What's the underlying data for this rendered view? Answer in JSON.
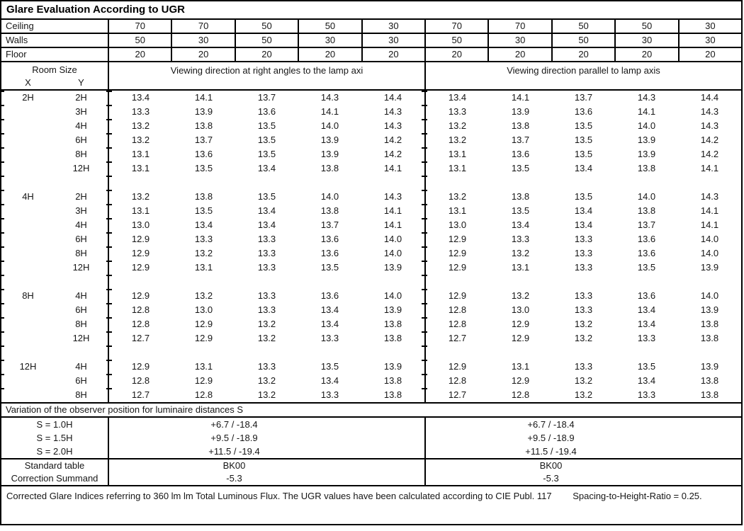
{
  "title": "Glare Evaluation According to UGR",
  "surface_rows": [
    {
      "label": "Ceiling",
      "values": [
        "70",
        "70",
        "50",
        "50",
        "30",
        "70",
        "70",
        "50",
        "50",
        "30"
      ]
    },
    {
      "label": "Walls",
      "values": [
        "50",
        "30",
        "50",
        "30",
        "30",
        "50",
        "30",
        "50",
        "30",
        "30"
      ]
    },
    {
      "label": "Floor",
      "values": [
        "20",
        "20",
        "20",
        "20",
        "20",
        "20",
        "20",
        "20",
        "20",
        "20"
      ]
    }
  ],
  "header": {
    "room_size": "Room Size",
    "x": "X",
    "y": "Y",
    "left_group": "Viewing direction at right angles to the lamp axi",
    "right_group": "Viewing direction parallel to lamp axis"
  },
  "ugr_rows": [
    {
      "x": "2H",
      "y": "2H",
      "v": [
        "13.4",
        "14.1",
        "13.7",
        "14.3",
        "14.4",
        "13.4",
        "14.1",
        "13.7",
        "14.3",
        "14.4"
      ]
    },
    {
      "x": "",
      "y": "3H",
      "v": [
        "13.3",
        "13.9",
        "13.6",
        "14.1",
        "14.3",
        "13.3",
        "13.9",
        "13.6",
        "14.1",
        "14.3"
      ]
    },
    {
      "x": "",
      "y": "4H",
      "v": [
        "13.2",
        "13.8",
        "13.5",
        "14.0",
        "14.3",
        "13.2",
        "13.8",
        "13.5",
        "14.0",
        "14.3"
      ]
    },
    {
      "x": "",
      "y": "6H",
      "v": [
        "13.2",
        "13.7",
        "13.5",
        "13.9",
        "14.2",
        "13.2",
        "13.7",
        "13.5",
        "13.9",
        "14.2"
      ]
    },
    {
      "x": "",
      "y": "8H",
      "v": [
        "13.1",
        "13.6",
        "13.5",
        "13.9",
        "14.2",
        "13.1",
        "13.6",
        "13.5",
        "13.9",
        "14.2"
      ]
    },
    {
      "x": "",
      "y": "12H",
      "v": [
        "13.1",
        "13.5",
        "13.4",
        "13.8",
        "14.1",
        "13.1",
        "13.5",
        "13.4",
        "13.8",
        "14.1"
      ]
    },
    {
      "blank": true
    },
    {
      "x": "4H",
      "y": "2H",
      "v": [
        "13.2",
        "13.8",
        "13.5",
        "14.0",
        "14.3",
        "13.2",
        "13.8",
        "13.5",
        "14.0",
        "14.3"
      ]
    },
    {
      "x": "",
      "y": "3H",
      "v": [
        "13.1",
        "13.5",
        "13.4",
        "13.8",
        "14.1",
        "13.1",
        "13.5",
        "13.4",
        "13.8",
        "14.1"
      ]
    },
    {
      "x": "",
      "y": "4H",
      "v": [
        "13.0",
        "13.4",
        "13.4",
        "13.7",
        "14.1",
        "13.0",
        "13.4",
        "13.4",
        "13.7",
        "14.1"
      ]
    },
    {
      "x": "",
      "y": "6H",
      "v": [
        "12.9",
        "13.3",
        "13.3",
        "13.6",
        "14.0",
        "12.9",
        "13.3",
        "13.3",
        "13.6",
        "14.0"
      ]
    },
    {
      "x": "",
      "y": "8H",
      "v": [
        "12.9",
        "13.2",
        "13.3",
        "13.6",
        "14.0",
        "12.9",
        "13.2",
        "13.3",
        "13.6",
        "14.0"
      ]
    },
    {
      "x": "",
      "y": "12H",
      "v": [
        "12.9",
        "13.1",
        "13.3",
        "13.5",
        "13.9",
        "12.9",
        "13.1",
        "13.3",
        "13.5",
        "13.9"
      ]
    },
    {
      "blank": true
    },
    {
      "x": "8H",
      "y": "4H",
      "v": [
        "12.9",
        "13.2",
        "13.3",
        "13.6",
        "14.0",
        "12.9",
        "13.2",
        "13.3",
        "13.6",
        "14.0"
      ]
    },
    {
      "x": "",
      "y": "6H",
      "v": [
        "12.8",
        "13.0",
        "13.3",
        "13.4",
        "13.9",
        "12.8",
        "13.0",
        "13.3",
        "13.4",
        "13.9"
      ]
    },
    {
      "x": "",
      "y": "8H",
      "v": [
        "12.8",
        "12.9",
        "13.2",
        "13.4",
        "13.8",
        "12.8",
        "12.9",
        "13.2",
        "13.4",
        "13.8"
      ]
    },
    {
      "x": "",
      "y": "12H",
      "v": [
        "12.7",
        "12.9",
        "13.2",
        "13.3",
        "13.8",
        "12.7",
        "12.9",
        "13.2",
        "13.3",
        "13.8"
      ]
    },
    {
      "blank": true
    },
    {
      "x": "12H",
      "y": "4H",
      "v": [
        "12.9",
        "13.1",
        "13.3",
        "13.5",
        "13.9",
        "12.9",
        "13.1",
        "13.3",
        "13.5",
        "13.9"
      ]
    },
    {
      "x": "",
      "y": "6H",
      "v": [
        "12.8",
        "12.9",
        "13.2",
        "13.4",
        "13.8",
        "12.8",
        "12.9",
        "13.2",
        "13.4",
        "13.8"
      ]
    },
    {
      "x": "",
      "y": "8H",
      "v": [
        "12.7",
        "12.8",
        "13.2",
        "13.3",
        "13.8",
        "12.7",
        "12.8",
        "13.2",
        "13.3",
        "13.8"
      ]
    }
  ],
  "variation": {
    "heading": "Variation of the observer position for luminaire distances S",
    "rows": [
      {
        "label": "S = 1.0H",
        "left": "+6.7 / -18.4",
        "right": "+6.7 / -18.4"
      },
      {
        "label": "S = 1.5H",
        "left": "+9.5 / -18.9",
        "right": "+9.5 / -18.9"
      },
      {
        "label": "S = 2.0H",
        "left": "+11.5 / -19.4",
        "right": "+11.5 / -19.4"
      }
    ]
  },
  "summary": {
    "rows": [
      {
        "label": "Standard table",
        "left": "BK00",
        "right": "BK00"
      },
      {
        "label": "Correction Summand",
        "left": "-5.3",
        "right": "-5.3"
      }
    ]
  },
  "footer": {
    "text1": "Corrected Glare Indices referring to 360 lm lm Total Luminous Flux. The UGR values have been calculated according to CIE Publ. 117",
    "text2": "Spacing-to-Height-Ratio = 0.25."
  }
}
